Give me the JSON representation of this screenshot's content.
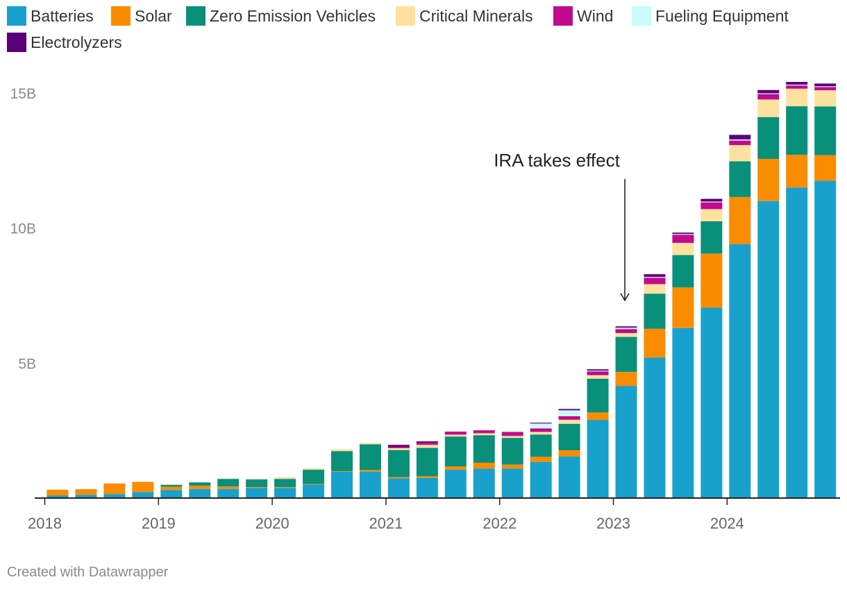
{
  "legend": [
    {
      "name": "Batteries",
      "color": "#18a1cd"
    },
    {
      "name": "Solar",
      "color": "#fa8c00"
    },
    {
      "name": "Zero Emission Vehicles",
      "color": "#09907a"
    },
    {
      "name": "Critical Minerals",
      "color": "#ffe19f"
    },
    {
      "name": "Wind",
      "color": "#c20a8d"
    },
    {
      "name": "Fueling Equipment",
      "color": "#c9fbfb"
    },
    {
      "name": "Electrolyzers",
      "color": "#5a0078"
    }
  ],
  "annotation": "IRA takes effect",
  "footer": "Created with Datawrapper",
  "chart_data": {
    "type": "bar",
    "stacked": true,
    "title": "",
    "xlabel": "",
    "ylabel": "",
    "ylim": [
      0,
      15000000000
    ],
    "y_ticks": [
      {
        "value": 5000000000,
        "label": "5B"
      },
      {
        "value": 10000000000,
        "label": "10B"
      },
      {
        "value": 15000000000,
        "label": "15B"
      }
    ],
    "x_ticks": [
      "2018",
      "2019",
      "2020",
      "2021",
      "2022",
      "2023",
      "2024"
    ],
    "categories": [
      "2018 Q1",
      "2018 Q2",
      "2018 Q3",
      "2018 Q4",
      "2019 Q1",
      "2019 Q2",
      "2019 Q3",
      "2019 Q4",
      "2020 Q1",
      "2020 Q2",
      "2020 Q3",
      "2020 Q4",
      "2021 Q1",
      "2021 Q2",
      "2021 Q3",
      "2021 Q4",
      "2022 Q1",
      "2022 Q2",
      "2022 Q3",
      "2022 Q4",
      "2023 Q1",
      "2023 Q2",
      "2023 Q3",
      "2023 Q4",
      "2024 Q1",
      "2024 Q2",
      "2024 Q3",
      "2024 Q4"
    ],
    "units": "billions USD",
    "series": [
      {
        "name": "Batteries",
        "color": "#18a1cd",
        "values": [
          0.1,
          0.12,
          0.15,
          0.22,
          0.3,
          0.34,
          0.34,
          0.38,
          0.38,
          0.5,
          0.98,
          0.98,
          0.73,
          0.75,
          1.05,
          1.09,
          1.09,
          1.34,
          1.54,
          2.89,
          4.15,
          5.2,
          6.3,
          7.05,
          9.4,
          11.0,
          11.5,
          11.75
        ]
      },
      {
        "name": "Solar",
        "color": "#fa8c00",
        "values": [
          0.21,
          0.21,
          0.39,
          0.38,
          0.12,
          0.12,
          0.09,
          0.03,
          0.03,
          0.02,
          0.02,
          0.06,
          0.05,
          0.06,
          0.12,
          0.22,
          0.15,
          0.19,
          0.23,
          0.28,
          0.52,
          1.07,
          1.5,
          2.0,
          1.75,
          1.56,
          1.21,
          0.95
        ]
      },
      {
        "name": "Zero Emission Vehicles",
        "color": "#09907a",
        "values": [
          0,
          0,
          0,
          0,
          0.07,
          0.12,
          0.28,
          0.28,
          0.3,
          0.53,
          0.74,
          0.95,
          1.0,
          1.05,
          1.11,
          1.02,
          0.99,
          0.82,
          0.98,
          1.25,
          1.3,
          1.3,
          1.2,
          1.2,
          1.32,
          1.55,
          1.8,
          1.8
        ]
      },
      {
        "name": "Critical Minerals",
        "color": "#ffe19f",
        "values": [
          0,
          0,
          0,
          0,
          0,
          0,
          0,
          0.03,
          0.06,
          0.05,
          0.07,
          0.05,
          0.07,
          0.11,
          0.07,
          0.07,
          0.07,
          0.1,
          0.15,
          0.13,
          0.14,
          0.35,
          0.45,
          0.45,
          0.6,
          0.65,
          0.65,
          0.6
        ]
      },
      {
        "name": "Wind",
        "color": "#c20a8d",
        "values": [
          0,
          0,
          0,
          0,
          0,
          0,
          0,
          0,
          0,
          0,
          0,
          0,
          0.05,
          0.08,
          0.11,
          0.11,
          0.15,
          0.13,
          0.13,
          0.14,
          0.15,
          0.24,
          0.3,
          0.25,
          0.17,
          0.2,
          0.12,
          0.12
        ]
      },
      {
        "name": "Fueling Equipment",
        "color": "#c9fbfb",
        "values": [
          0,
          0,
          0,
          0,
          0,
          0,
          0,
          0,
          0,
          0,
          0,
          0,
          0,
          0,
          0,
          0,
          0.05,
          0.18,
          0.22,
          0.03,
          0.05,
          0.03,
          0.03,
          0.03,
          0.04,
          0.03,
          0.03,
          0.03
        ]
      },
      {
        "name": "Electrolyzers",
        "color": "#5a0078",
        "values": [
          0,
          0,
          0,
          0,
          0,
          0,
          0,
          0,
          0,
          0,
          0,
          0,
          0.07,
          0.05,
          0,
          0,
          0,
          0.03,
          0.05,
          0.05,
          0.05,
          0.1,
          0.05,
          0.1,
          0.17,
          0.12,
          0.1,
          0.1
        ]
      }
    ],
    "annotations": [
      {
        "text": "IRA takes effect",
        "category": "2023 Q1",
        "arrow": true
      }
    ],
    "legend_position": "top-left",
    "grid": false
  }
}
